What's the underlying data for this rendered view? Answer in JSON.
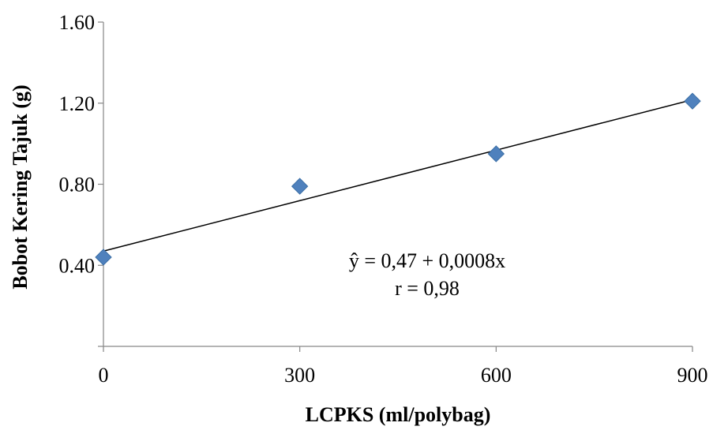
{
  "chart_data": {
    "type": "scatter",
    "title": "",
    "xlabel": "LCPKS (ml/polybag)",
    "ylabel": "Bobot Kering Tajuk (g)",
    "xlim": [
      0,
      900
    ],
    "ylim": [
      0,
      1.6
    ],
    "x_ticks": [
      0,
      300,
      600,
      900
    ],
    "x_tick_labels": [
      "0",
      "300",
      "600",
      "900"
    ],
    "y_ticks": [
      0.4,
      0.8,
      1.2,
      1.6
    ],
    "y_tick_labels": [
      "0.40",
      "0.80",
      "1.20",
      "1.60"
    ],
    "grid": false,
    "series": [
      {
        "x": [
          0,
          300,
          600,
          900
        ],
        "values": [
          0.44,
          0.79,
          0.95,
          1.21
        ],
        "marker": "diamond",
        "color": "#4F81BD"
      }
    ],
    "trendline": {
      "intercept": 0.47,
      "slope": 0.00083,
      "color": "#000000"
    },
    "annotations": [
      "ŷ = 0,47 + 0,0008x",
      "r = 0,98"
    ]
  }
}
